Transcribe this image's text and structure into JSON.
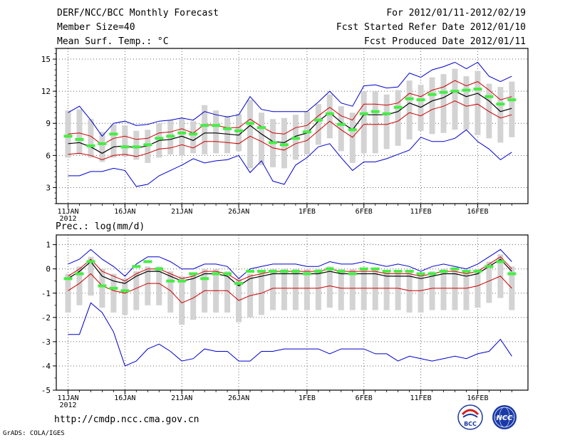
{
  "header": {
    "left": [
      "DERF/NCC/BCC Monthly Forecast",
      "Member Size=40",
      "Mean Surf. Temp.: °C"
    ],
    "right": [
      "For 2012/01/11-2012/02/19",
      "Fcst Started Refer Date 2012/01/10",
      "Fcst Produced Date 2012/01/11"
    ]
  },
  "footer": {
    "url": "http://cmdp.ncc.cma.gov.cn",
    "credit": "GrADS: COLA/IGES"
  },
  "logos": {
    "left_label": "BCC",
    "right_label": "NCC"
  },
  "chart_data": [
    {
      "type": "line",
      "title": "Mean Surf. Temp.: °C",
      "ylim": [
        1.5,
        16
      ],
      "yticks": [
        3,
        6,
        9,
        12,
        15
      ],
      "xticks": [
        {
          "label": "11JAN",
          "day": 0,
          "sublabel": "2012"
        },
        {
          "label": "16JAN",
          "day": 5
        },
        {
          "label": "21JAN",
          "day": 10
        },
        {
          "label": "26JAN",
          "day": 15
        },
        {
          "label": "1FEB",
          "day": 21
        },
        {
          "label": "6FEB",
          "day": 26
        },
        {
          "label": "11FEB",
          "day": 31
        },
        {
          "label": "16FEB",
          "day": 36
        }
      ],
      "series": [
        {
          "name": "max",
          "color": "#0000cc",
          "values": [
            10.0,
            10.6,
            9.3,
            7.8,
            9.0,
            9.2,
            8.8,
            8.9,
            9.2,
            9.3,
            9.5,
            9.3,
            10.1,
            9.8,
            9.6,
            9.8,
            11.5,
            10.3,
            10.1,
            10.1,
            10.1,
            10.1,
            11.0,
            12.0,
            10.9,
            10.6,
            12.5,
            12.6,
            12.3,
            12.4,
            13.7,
            13.3,
            14.0,
            14.3,
            14.7,
            14.1,
            14.7,
            13.4,
            12.9,
            13.4
          ]
        },
        {
          "name": "upper",
          "color": "#cc0000",
          "values": [
            8.0,
            8.1,
            7.8,
            7.0,
            7.6,
            7.8,
            7.5,
            7.6,
            8.1,
            8.2,
            8.5,
            8.1,
            8.9,
            8.8,
            8.6,
            8.6,
            9.4,
            8.7,
            8.1,
            8.0,
            8.6,
            8.8,
            9.7,
            10.5,
            9.7,
            9.3,
            10.8,
            10.8,
            10.7,
            10.9,
            11.8,
            11.5,
            12.1,
            12.4,
            13.0,
            12.5,
            12.9,
            12.1,
            11.2,
            11.5
          ]
        },
        {
          "name": "mean",
          "color": "#000000",
          "values": [
            7.1,
            7.2,
            6.8,
            6.2,
            6.8,
            6.9,
            6.7,
            6.9,
            7.4,
            7.5,
            7.8,
            7.4,
            8.1,
            8.1,
            8.0,
            7.9,
            8.8,
            8.0,
            7.3,
            7.2,
            7.8,
            8.1,
            9.2,
            10.0,
            9.1,
            8.4,
            9.8,
            9.8,
            9.8,
            10.1,
            10.9,
            10.5,
            11.1,
            11.4,
            12.0,
            11.5,
            11.8,
            11.1,
            10.1,
            10.4
          ]
        },
        {
          "name": "lower",
          "color": "#cc0000",
          "values": [
            6.1,
            6.2,
            6.0,
            5.6,
            6.0,
            6.1,
            5.9,
            6.2,
            6.6,
            6.7,
            7.0,
            6.7,
            7.3,
            7.3,
            7.2,
            7.1,
            7.8,
            7.3,
            6.7,
            6.5,
            7.1,
            7.4,
            8.3,
            9.2,
            8.4,
            7.7,
            8.9,
            8.9,
            8.9,
            9.2,
            10.0,
            9.7,
            10.3,
            10.6,
            11.1,
            10.6,
            10.8,
            10.1,
            9.5,
            9.8
          ]
        },
        {
          "name": "min",
          "color": "#0000cc",
          "values": [
            4.1,
            4.1,
            4.5,
            4.5,
            4.8,
            4.6,
            3.1,
            3.3,
            4.1,
            4.6,
            5.1,
            5.7,
            5.3,
            5.5,
            5.6,
            6.0,
            4.4,
            5.5,
            3.6,
            3.3,
            5.1,
            5.8,
            6.8,
            7.1,
            5.8,
            4.6,
            5.4,
            5.4,
            5.7,
            6.1,
            6.5,
            7.7,
            7.3,
            7.3,
            7.6,
            8.4,
            7.3,
            6.6,
            5.6,
            6.3
          ]
        }
      ],
      "obs": [
        7.8,
        7.5,
        6.9,
        7.1,
        8.0,
        6.8,
        6.8,
        7.0,
        7.6,
        7.8,
        8.1,
        8.0,
        8.8,
        8.8,
        8.5,
        8.3,
        9.0,
        8.6,
        7.2,
        7.0,
        7.6,
        8.2,
        9.3,
        9.9,
        8.9,
        8.4,
        9.9,
        10.1,
        9.9,
        10.5,
        11.3,
        11.2,
        11.7,
        11.9,
        12.0,
        12.1,
        12.2,
        11.5,
        10.8,
        11.2
      ],
      "box_lo": [
        5.8,
        6.1,
        5.8,
        5.4,
        5.8,
        5.9,
        5.6,
        5.3,
        5.8,
        6.1,
        6.0,
        6.2,
        6.1,
        6.2,
        6.2,
        6.4,
        4.8,
        5.1,
        4.9,
        4.8,
        5.6,
        6.1,
        7.0,
        7.6,
        6.4,
        5.3,
        6.2,
        6.2,
        6.6,
        6.9,
        7.5,
        8.3,
        8.0,
        8.1,
        8.4,
        8.4,
        7.9,
        7.6,
        7.2,
        7.7
      ],
      "box_hi": [
        10.2,
        10.3,
        9.4,
        8.2,
        8.9,
        8.8,
        8.3,
        8.4,
        9.0,
        9.3,
        9.5,
        9.2,
        10.7,
        10.2,
        9.7,
        9.9,
        11.2,
        10.0,
        9.4,
        9.5,
        9.8,
        10.1,
        10.8,
        11.7,
        10.6,
        10.0,
        12.0,
        12.0,
        11.7,
        12.1,
        13.0,
        12.6,
        13.3,
        13.6,
        14.1,
        13.4,
        13.9,
        12.7,
        12.4,
        12.9
      ]
    },
    {
      "type": "line",
      "title": "Prec.: log(mm/d)",
      "ylim": [
        -5,
        1.4
      ],
      "yticks": [
        1,
        0,
        -1,
        -2,
        -3,
        -4,
        -5
      ],
      "xticks": [
        {
          "label": "11JAN",
          "day": 0,
          "sublabel": "2012"
        },
        {
          "label": "16JAN",
          "day": 5
        },
        {
          "label": "21JAN",
          "day": 10
        },
        {
          "label": "26JAN",
          "day": 15
        },
        {
          "label": "1FEB",
          "day": 21
        },
        {
          "label": "6FEB",
          "day": 26
        },
        {
          "label": "11FEB",
          "day": 31
        },
        {
          "label": "16FEB",
          "day": 36
        }
      ],
      "series": [
        {
          "name": "max",
          "color": "#0000cc",
          "values": [
            0.2,
            0.4,
            0.8,
            0.4,
            0.1,
            -0.3,
            0.2,
            0.5,
            0.5,
            0.3,
            0.0,
            0.0,
            0.2,
            0.2,
            0.1,
            -0.4,
            0.0,
            0.1,
            0.2,
            0.2,
            0.2,
            0.1,
            0.1,
            0.3,
            0.2,
            0.2,
            0.3,
            0.2,
            0.1,
            0.2,
            0.1,
            -0.1,
            0.1,
            0.2,
            0.1,
            0.0,
            0.2,
            0.5,
            0.8,
            0.3
          ]
        },
        {
          "name": "upper",
          "color": "#cc0000",
          "values": [
            -0.3,
            0.0,
            0.4,
            -0.1,
            -0.3,
            -0.5,
            -0.2,
            0.0,
            0.0,
            -0.2,
            -0.4,
            -0.3,
            -0.1,
            -0.1,
            -0.2,
            -0.5,
            -0.3,
            -0.2,
            -0.1,
            -0.1,
            -0.1,
            -0.1,
            -0.1,
            0.0,
            -0.1,
            -0.1,
            -0.1,
            -0.1,
            -0.2,
            -0.2,
            -0.2,
            -0.3,
            -0.2,
            -0.1,
            -0.1,
            -0.2,
            -0.1,
            0.2,
            0.5,
            0.0
          ]
        },
        {
          "name": "mean",
          "color": "#000000",
          "values": [
            -0.4,
            -0.1,
            0.3,
            -0.3,
            -0.5,
            -0.6,
            -0.3,
            -0.1,
            -0.1,
            -0.3,
            -0.5,
            -0.4,
            -0.2,
            -0.2,
            -0.3,
            -0.7,
            -0.4,
            -0.3,
            -0.2,
            -0.2,
            -0.2,
            -0.2,
            -0.2,
            -0.1,
            -0.2,
            -0.2,
            -0.2,
            -0.2,
            -0.3,
            -0.3,
            -0.3,
            -0.4,
            -0.3,
            -0.2,
            -0.2,
            -0.3,
            -0.2,
            0.1,
            0.4,
            -0.1
          ]
        },
        {
          "name": "lower",
          "color": "#cc0000",
          "values": [
            -0.9,
            -0.6,
            -0.2,
            -0.7,
            -0.9,
            -1.0,
            -0.8,
            -0.6,
            -0.6,
            -0.9,
            -1.4,
            -1.2,
            -0.9,
            -0.9,
            -0.9,
            -1.3,
            -1.1,
            -1.0,
            -0.8,
            -0.8,
            -0.8,
            -0.8,
            -0.8,
            -0.7,
            -0.8,
            -0.8,
            -0.8,
            -0.8,
            -0.8,
            -0.8,
            -0.9,
            -0.9,
            -0.8,
            -0.8,
            -0.8,
            -0.8,
            -0.7,
            -0.5,
            -0.3,
            -0.8
          ]
        },
        {
          "name": "min",
          "color": "#0000cc",
          "values": [
            -2.7,
            -2.7,
            -1.4,
            -1.8,
            -2.6,
            -4.0,
            -3.8,
            -3.3,
            -3.1,
            -3.4,
            -3.8,
            -3.7,
            -3.3,
            -3.4,
            -3.4,
            -3.8,
            -3.8,
            -3.4,
            -3.4,
            -3.3,
            -3.3,
            -3.3,
            -3.3,
            -3.5,
            -3.3,
            -3.3,
            -3.3,
            -3.5,
            -3.5,
            -3.8,
            -3.6,
            -3.7,
            -3.8,
            -3.7,
            -3.6,
            -3.7,
            -3.5,
            -3.4,
            -2.9,
            -3.6
          ]
        }
      ],
      "obs": [
        -0.4,
        -0.2,
        0.3,
        -0.7,
        -0.8,
        -0.9,
        0.1,
        0.3,
        0.0,
        -0.5,
        -0.5,
        -0.2,
        -0.4,
        -0.2,
        -0.2,
        -0.6,
        -0.1,
        -0.1,
        -0.1,
        -0.1,
        -0.1,
        -0.2,
        -0.1,
        0.0,
        -0.1,
        -0.2,
        0.0,
        0.0,
        -0.1,
        -0.1,
        -0.1,
        -0.2,
        -0.2,
        -0.1,
        0.0,
        -0.1,
        -0.1,
        0.1,
        0.3,
        -0.2
      ]
    }
  ]
}
